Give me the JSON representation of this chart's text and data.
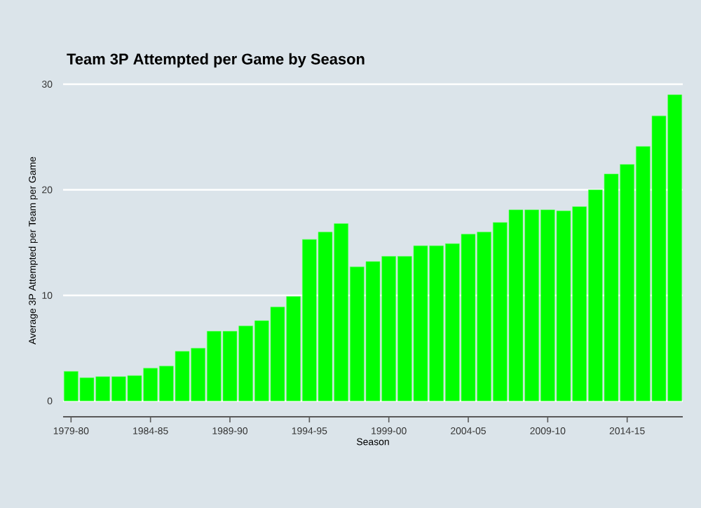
{
  "chart_data": {
    "type": "bar",
    "title": "Team 3P Attempted per Game by Season",
    "xlabel": "Season",
    "ylabel": "Average 3P Attempted per Team per Game",
    "categories": [
      "1979-80",
      null,
      null,
      null,
      null,
      "1984-85",
      null,
      null,
      null,
      null,
      "1989-90",
      null,
      null,
      null,
      null,
      "1994-95",
      null,
      null,
      null,
      null,
      "1999-00",
      null,
      null,
      null,
      null,
      "2004-05",
      null,
      null,
      null,
      null,
      "2009-10",
      null,
      null,
      null,
      null,
      "2014-15",
      null,
      null,
      null
    ],
    "values": [
      2.8,
      2.2,
      2.3,
      2.3,
      2.4,
      3.1,
      3.3,
      4.7,
      5.0,
      6.6,
      6.6,
      7.1,
      7.6,
      8.9,
      9.9,
      15.3,
      16.0,
      16.8,
      12.7,
      13.2,
      13.7,
      13.7,
      14.7,
      14.7,
      14.9,
      15.8,
      16.0,
      16.9,
      18.1,
      18.1,
      18.1,
      18.0,
      18.4,
      20.0,
      21.5,
      22.4,
      24.1,
      27.0,
      29.0
    ],
    "color": "#00ff00",
    "ylim": [
      -1.5,
      30
    ],
    "yticks": [
      0,
      10,
      20,
      30
    ],
    "grid": "y"
  }
}
